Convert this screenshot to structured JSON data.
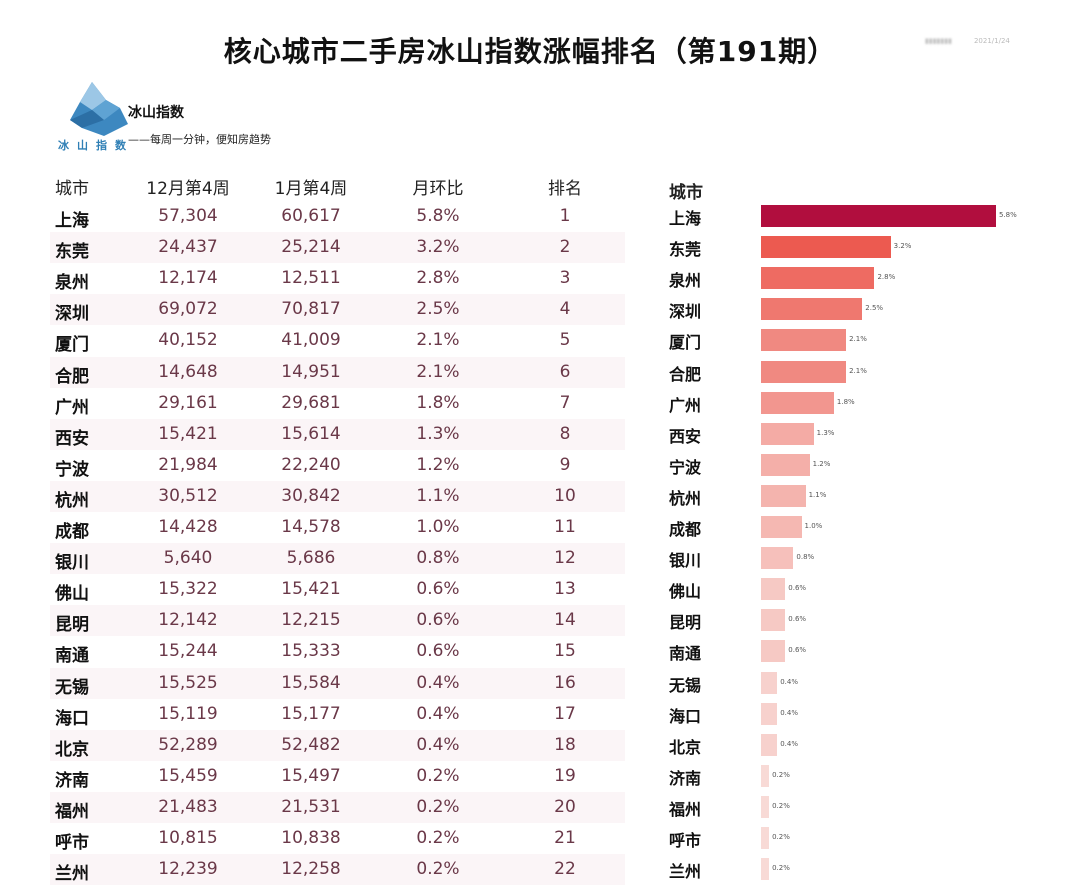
{
  "title": "核心城市二手房冰山指数涨幅排名（第191期）",
  "meta": {
    "date": "2021/1/24"
  },
  "brand": {
    "logo_text": "冰山指数",
    "name": "冰山指数",
    "slogan": "——每周一分钟，便知房趋势"
  },
  "colors": {
    "top": "#b10e3e",
    "mid": "#ec5a50",
    "light": "#f8dad6",
    "row_stripe": "#fbf5f7"
  },
  "table": {
    "headers": [
      "城市",
      "12月第4周",
      "1月第4周",
      "月环比",
      "排名"
    ],
    "rows": [
      [
        "上海",
        "57,304",
        "60,617",
        "5.8%",
        "1"
      ],
      [
        "东莞",
        "24,437",
        "25,214",
        "3.2%",
        "2"
      ],
      [
        "泉州",
        "12,174",
        "12,511",
        "2.8%",
        "3"
      ],
      [
        "深圳",
        "69,072",
        "70,817",
        "2.5%",
        "4"
      ],
      [
        "厦门",
        "40,152",
        "41,009",
        "2.1%",
        "5"
      ],
      [
        "合肥",
        "14,648",
        "14,951",
        "2.1%",
        "6"
      ],
      [
        "广州",
        "29,161",
        "29,681",
        "1.8%",
        "7"
      ],
      [
        "西安",
        "15,421",
        "15,614",
        "1.3%",
        "8"
      ],
      [
        "宁波",
        "21,984",
        "22,240",
        "1.2%",
        "9"
      ],
      [
        "杭州",
        "30,512",
        "30,842",
        "1.1%",
        "10"
      ],
      [
        "成都",
        "14,428",
        "14,578",
        "1.0%",
        "11"
      ],
      [
        "银川",
        "5,640",
        "5,686",
        "0.8%",
        "12"
      ],
      [
        "佛山",
        "15,322",
        "15,421",
        "0.6%",
        "13"
      ],
      [
        "昆明",
        "12,142",
        "12,215",
        "0.6%",
        "14"
      ],
      [
        "南通",
        "15,244",
        "15,333",
        "0.6%",
        "15"
      ],
      [
        "无锡",
        "15,525",
        "15,584",
        "0.4%",
        "16"
      ],
      [
        "海口",
        "15,119",
        "15,177",
        "0.4%",
        "17"
      ],
      [
        "北京",
        "52,289",
        "52,482",
        "0.4%",
        "18"
      ],
      [
        "济南",
        "15,459",
        "15,497",
        "0.2%",
        "19"
      ],
      [
        "福州",
        "21,483",
        "21,531",
        "0.2%",
        "20"
      ],
      [
        "呼市",
        "10,815",
        "10,838",
        "0.2%",
        "21"
      ],
      [
        "兰州",
        "12,239",
        "12,258",
        "0.2%",
        "22"
      ]
    ]
  },
  "chart_data": {
    "type": "bar",
    "orientation": "horizontal",
    "category_header": "城市",
    "categories": [
      "上海",
      "东莞",
      "泉州",
      "深圳",
      "厦门",
      "合肥",
      "广州",
      "西安",
      "宁波",
      "杭州",
      "成都",
      "银川",
      "佛山",
      "昆明",
      "南通",
      "无锡",
      "海口",
      "北京",
      "济南",
      "福州",
      "呼市",
      "兰州"
    ],
    "values": [
      5.8,
      3.2,
      2.8,
      2.5,
      2.1,
      2.1,
      1.8,
      1.3,
      1.2,
      1.1,
      1.0,
      0.8,
      0.6,
      0.6,
      0.6,
      0.4,
      0.4,
      0.4,
      0.2,
      0.2,
      0.2,
      0.2
    ],
    "data_labels": [
      "5.8%",
      "3.2%",
      "2.8%",
      "2.5%",
      "2.1%",
      "2.1%",
      "1.8%",
      "1.3%",
      "1.2%",
      "1.1%",
      "1.0%",
      "0.8%",
      "0.6%",
      "0.6%",
      "0.6%",
      "0.4%",
      "0.4%",
      "0.4%",
      "0.2%",
      "0.2%",
      "0.2%",
      "0.2%"
    ],
    "unit": "%",
    "grid": false
  }
}
